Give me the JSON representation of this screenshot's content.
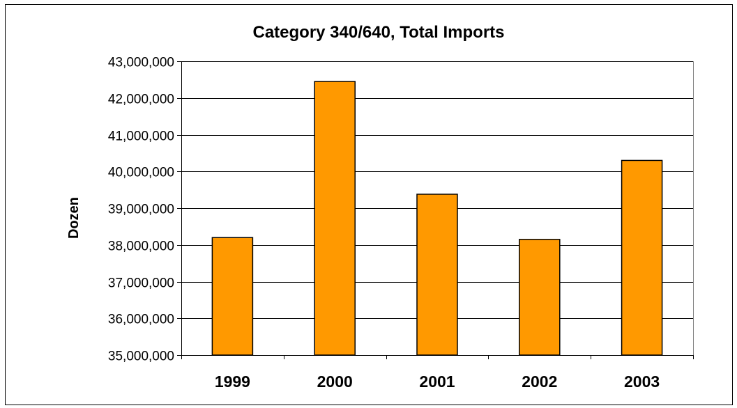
{
  "chart_data": {
    "type": "bar",
    "title": "Category 340/640, Total Imports",
    "xlabel": "",
    "ylabel": "Dozen",
    "categories": [
      "1999",
      "2000",
      "2001",
      "2002",
      "2003"
    ],
    "values": [
      38200000,
      42450000,
      39380000,
      38150000,
      40300000
    ],
    "ylim": [
      35000000,
      43000000
    ],
    "yticks": [
      35000000,
      36000000,
      37000000,
      38000000,
      39000000,
      40000000,
      41000000,
      42000000,
      43000000
    ],
    "ytick_labels": [
      "35,000,000",
      "36,000,000",
      "37,000,000",
      "38,000,000",
      "39,000,000",
      "40,000,000",
      "41,000,000",
      "42,000,000",
      "43,000,000"
    ],
    "grid": true,
    "bar_color": "#FF9900",
    "bar_edge_color": "#000000"
  }
}
